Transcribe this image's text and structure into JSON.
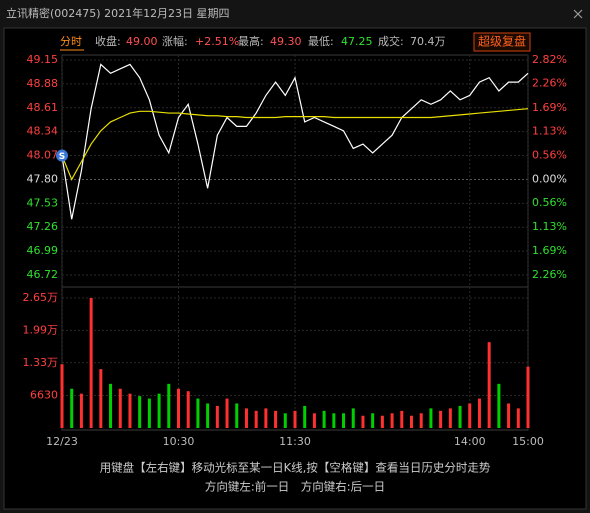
{
  "header": {
    "title": "立讯精密(002475) 2021年12月23日 星期四",
    "tab": "分时",
    "stats": [
      {
        "label": "收盘:",
        "value": "49.00"
      },
      {
        "label": "涨幅:",
        "value": "+2.51%"
      },
      {
        "label": "最高:",
        "value": "49.30"
      },
      {
        "label": "最低:",
        "value": "47.25"
      },
      {
        "label": "成交:",
        "value": "70.4万"
      }
    ],
    "button": "超级复盘"
  },
  "chart_data": {
    "type": "intraday",
    "marker": "S",
    "x": [
      0,
      5,
      10,
      15,
      20,
      25,
      30,
      35,
      40,
      45,
      50,
      55,
      60,
      65,
      70,
      75,
      80,
      85,
      90,
      95,
      100,
      105,
      110,
      115,
      120,
      125,
      130,
      135,
      140,
      145,
      150,
      155,
      160,
      165,
      170,
      175,
      180,
      185,
      190,
      195,
      200,
      205,
      210,
      215,
      220,
      225,
      230,
      235,
      240
    ],
    "xlim": [
      0,
      240
    ],
    "xticks": [
      {
        "value": 0,
        "label": "12/23"
      },
      {
        "value": 60,
        "label": "10:30"
      },
      {
        "value": 120,
        "label": "11:30"
      },
      {
        "value": 210,
        "label": "14:00"
      },
      {
        "value": 240,
        "label": "15:00"
      }
    ],
    "series": [
      {
        "color": "#ffffff",
        "values": [
          48.07,
          47.35,
          47.9,
          48.6,
          49.1,
          49.0,
          49.05,
          49.1,
          48.95,
          48.7,
          48.3,
          48.1,
          48.5,
          48.65,
          48.2,
          47.7,
          48.3,
          48.5,
          48.4,
          48.4,
          48.55,
          48.75,
          48.9,
          48.75,
          48.95,
          48.45,
          48.5,
          48.45,
          48.4,
          48.35,
          48.15,
          48.2,
          48.1,
          48.2,
          48.3,
          48.5,
          48.6,
          48.7,
          48.65,
          48.7,
          48.8,
          48.7,
          48.75,
          48.9,
          48.95,
          48.8,
          48.9,
          48.9,
          49.0
        ]
      },
      {
        "color": "#e8e000",
        "values": [
          48.07,
          47.8,
          48.0,
          48.2,
          48.35,
          48.45,
          48.5,
          48.55,
          48.57,
          48.57,
          48.56,
          48.55,
          48.55,
          48.54,
          48.53,
          48.52,
          48.52,
          48.51,
          48.51,
          48.5,
          48.5,
          48.5,
          48.5,
          48.51,
          48.51,
          48.51,
          48.51,
          48.51,
          48.5,
          48.5,
          48.5,
          48.5,
          48.5,
          48.5,
          48.5,
          48.5,
          48.5,
          48.5,
          48.5,
          48.51,
          48.52,
          48.53,
          48.54,
          48.55,
          48.56,
          48.57,
          48.58,
          48.59,
          48.6
        ]
      }
    ],
    "ylim": [
      46.72,
      49.15
    ],
    "yticks": [
      49.15,
      48.88,
      48.61,
      48.34,
      48.07,
      {
        "value": 47.8,
        "label": "47.80"
      },
      47.53,
      47.26,
      46.99,
      46.72
    ],
    "y2lim": [
      -2.26,
      2.82
    ],
    "y2ticks": [
      {
        "value": 2.82,
        "label": "2.82%"
      },
      {
        "value": 2.26,
        "label": "2.26%"
      },
      {
        "value": 1.69,
        "label": "1.69%"
      },
      {
        "value": 1.13,
        "label": "1.13%"
      },
      {
        "value": 0.56,
        "label": "0.56%"
      },
      {
        "value": 0,
        "label": "0.00%"
      },
      {
        "value": -0.56,
        "label": "0.56%"
      },
      {
        "value": -1.13,
        "label": "1.13%"
      },
      {
        "value": -1.69,
        "label": "1.69%"
      },
      {
        "value": -2.26,
        "label": "2.26%"
      }
    ],
    "volume": {
      "up_color": "#ff3030",
      "down_color": "#00d000",
      "values": [
        13000,
        8000,
        7000,
        26500,
        12000,
        9000,
        8000,
        7000,
        6500,
        6000,
        7000,
        9000,
        8000,
        7500,
        6000,
        5000,
        4500,
        6000,
        5000,
        4000,
        3500,
        4000,
        3500,
        3000,
        3500,
        4500,
        3000,
        3500,
        3000,
        3000,
        4000,
        2500,
        3000,
        2500,
        3000,
        3500,
        2500,
        3000,
        4000,
        3500,
        4000,
        4500,
        5000,
        6000,
        17500,
        9000,
        5000,
        4000,
        12500
      ],
      "vlim": [
        0,
        26500
      ],
      "vticks": [
        {
          "value": 26500,
          "label": "2.65万"
        },
        {
          "value": 19900,
          "label": "1.99万"
        },
        {
          "value": 13300,
          "label": "1.33万"
        },
        6630
      ]
    },
    "grid": true
  },
  "footer": {
    "line1": "用键盘【左右键】移动光标至某一日K线,按【空格键】查看当日历史分时走势",
    "line2": "方向键左:前一日　方向键右:后一日"
  }
}
